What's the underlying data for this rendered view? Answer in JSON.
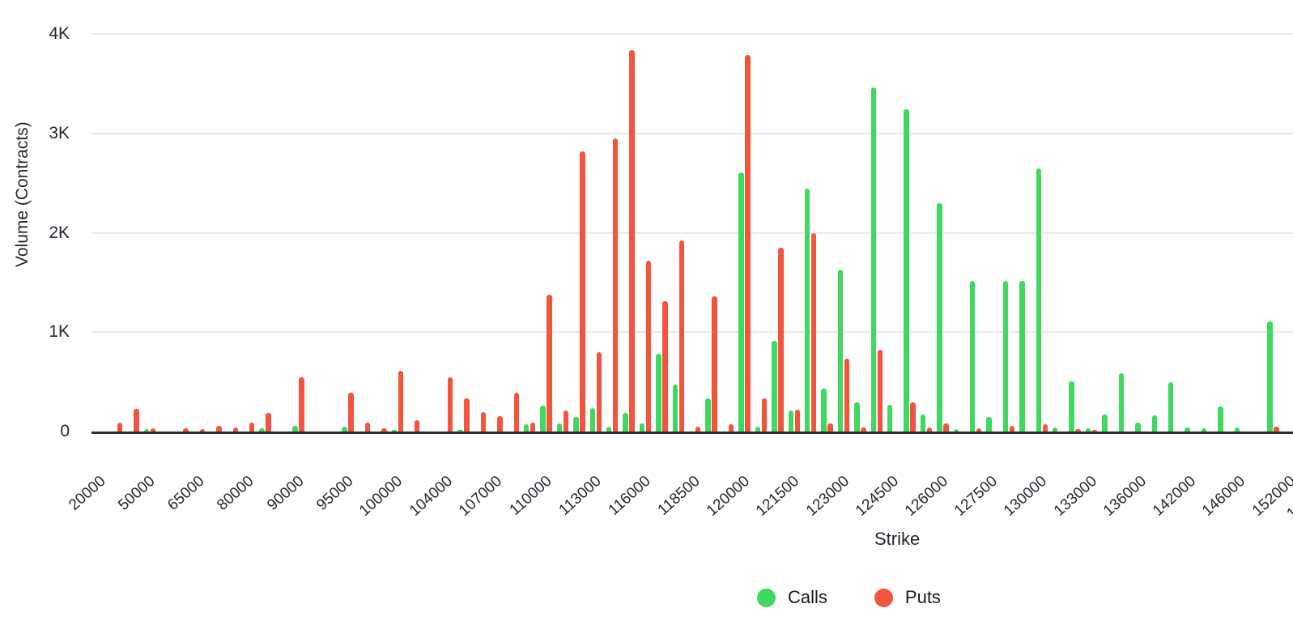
{
  "chart_data": {
    "type": "bar",
    "title": "",
    "xlabel": "Strike",
    "ylabel": "Volume (Contracts)",
    "ylim": [
      0,
      4000
    ],
    "grid": "horizontal",
    "legend_position": "bottom",
    "y_ticks": [
      "4K",
      "3K",
      "2K",
      "1K",
      "0"
    ],
    "y_tick_values": [
      4000,
      3000,
      2000,
      1000,
      0
    ],
    "x_partial_tick": "1",
    "series": [
      {
        "name": "Calls",
        "color": "#3fd960",
        "key": "calls"
      },
      {
        "name": "Puts",
        "color": "#f2543e",
        "key": "puts"
      }
    ],
    "groups": [
      {
        "label": "20000",
        "calls": 0,
        "puts": 0
      },
      {
        "label": "",
        "calls": 0,
        "puts": 90
      },
      {
        "label": "",
        "calls": 0,
        "puts": 230
      },
      {
        "label": "50000",
        "calls": 25,
        "puts": 35
      },
      {
        "label": "",
        "calls": 0,
        "puts": 0
      },
      {
        "label": "",
        "calls": 0,
        "puts": 35
      },
      {
        "label": "65000",
        "calls": 0,
        "puts": 25
      },
      {
        "label": "",
        "calls": 0,
        "puts": 55
      },
      {
        "label": "",
        "calls": 0,
        "puts": 40
      },
      {
        "label": "80000",
        "calls": 0,
        "puts": 90
      },
      {
        "label": "",
        "calls": 30,
        "puts": 190
      },
      {
        "label": "",
        "calls": 0,
        "puts": 0
      },
      {
        "label": "90000",
        "calls": 55,
        "puts": 545
      },
      {
        "label": "",
        "calls": 0,
        "puts": 0
      },
      {
        "label": "",
        "calls": 0,
        "puts": 0
      },
      {
        "label": "95000",
        "calls": 45,
        "puts": 395
      },
      {
        "label": "",
        "calls": 0,
        "puts": 90
      },
      {
        "label": "",
        "calls": 0,
        "puts": 30
      },
      {
        "label": "100000",
        "calls": 20,
        "puts": 610
      },
      {
        "label": "",
        "calls": 0,
        "puts": 110
      },
      {
        "label": "",
        "calls": 0,
        "puts": 0
      },
      {
        "label": "104000",
        "calls": 0,
        "puts": 545
      },
      {
        "label": "",
        "calls": 20,
        "puts": 330
      },
      {
        "label": "",
        "calls": 0,
        "puts": 195
      },
      {
        "label": "107000",
        "calls": 0,
        "puts": 155
      },
      {
        "label": "",
        "calls": 0,
        "puts": 390
      },
      {
        "label": "",
        "calls": 70,
        "puts": 90
      },
      {
        "label": "110000",
        "calls": 260,
        "puts": 1380
      },
      {
        "label": "",
        "calls": 80,
        "puts": 215
      },
      {
        "label": "",
        "calls": 150,
        "puts": 2820
      },
      {
        "label": "113000",
        "calls": 240,
        "puts": 800
      },
      {
        "label": "",
        "calls": 45,
        "puts": 2950
      },
      {
        "label": "",
        "calls": 190,
        "puts": 3840
      },
      {
        "label": "116000",
        "calls": 85,
        "puts": 1715
      },
      {
        "label": "",
        "calls": 780,
        "puts": 1310
      },
      {
        "label": "",
        "calls": 470,
        "puts": 1925
      },
      {
        "label": "118500",
        "calls": 0,
        "puts": 50
      },
      {
        "label": "",
        "calls": 330,
        "puts": 1360
      },
      {
        "label": "",
        "calls": 0,
        "puts": 70
      },
      {
        "label": "120000",
        "calls": 2610,
        "puts": 3790
      },
      {
        "label": "",
        "calls": 50,
        "puts": 330
      },
      {
        "label": "",
        "calls": 915,
        "puts": 1850
      },
      {
        "label": "121500",
        "calls": 215,
        "puts": 220
      },
      {
        "label": "",
        "calls": 2440,
        "puts": 2000
      },
      {
        "label": "",
        "calls": 435,
        "puts": 85
      },
      {
        "label": "123000",
        "calls": 1630,
        "puts": 730
      },
      {
        "label": "",
        "calls": 295,
        "puts": 40
      },
      {
        "label": "",
        "calls": 3465,
        "puts": 820
      },
      {
        "label": "124500",
        "calls": 270,
        "puts": 0
      },
      {
        "label": "",
        "calls": 3240,
        "puts": 290
      },
      {
        "label": "",
        "calls": 175,
        "puts": 40
      },
      {
        "label": "126000",
        "calls": 2295,
        "puts": 80
      },
      {
        "label": "",
        "calls": 25,
        "puts": 0
      },
      {
        "label": "",
        "calls": 1515,
        "puts": 30
      },
      {
        "label": "127500",
        "calls": 145,
        "puts": 0
      },
      {
        "label": "",
        "calls": 1515,
        "puts": 55
      },
      {
        "label": "",
        "calls": 1515,
        "puts": 0
      },
      {
        "label": "130000",
        "calls": 2650,
        "puts": 75
      },
      {
        "label": "",
        "calls": 40,
        "puts": 0
      },
      {
        "label": "",
        "calls": 505,
        "puts": 25
      },
      {
        "label": "133000",
        "calls": 30,
        "puts": 20
      },
      {
        "label": "",
        "calls": 170,
        "puts": 0
      },
      {
        "label": "",
        "calls": 590,
        "puts": 0
      },
      {
        "label": "136000",
        "calls": 90,
        "puts": 0
      },
      {
        "label": "",
        "calls": 160,
        "puts": 0
      },
      {
        "label": "",
        "calls": 500,
        "puts": 0
      },
      {
        "label": "142000",
        "calls": 40,
        "puts": 0
      },
      {
        "label": "",
        "calls": 30,
        "puts": 0
      },
      {
        "label": "",
        "calls": 250,
        "puts": 0
      },
      {
        "label": "146000",
        "calls": 40,
        "puts": 0
      },
      {
        "label": "",
        "calls": 0,
        "puts": 0
      },
      {
        "label": "",
        "calls": 1110,
        "puts": 50
      },
      {
        "label": "152000",
        "calls": 0,
        "puts": 0
      }
    ]
  }
}
